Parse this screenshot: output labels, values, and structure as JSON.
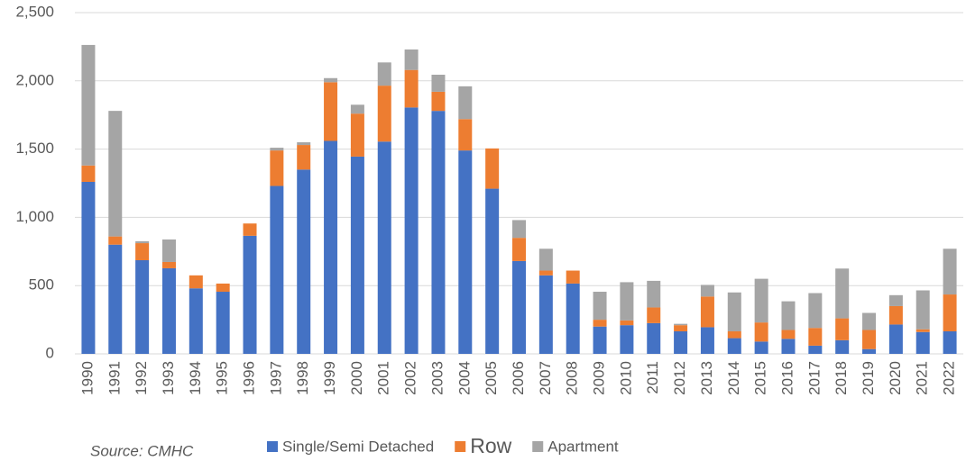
{
  "chart_data": {
    "type": "stacked_bar",
    "categories": [
      "1990",
      "1991",
      "1992",
      "1993",
      "1994",
      "1995",
      "1996",
      "1997",
      "1998",
      "1999",
      "2000",
      "2001",
      "2002",
      "2003",
      "2004",
      "2005",
      "2006",
      "2007",
      "2008",
      "2009",
      "2010",
      "2011",
      "2012",
      "2013",
      "2014",
      "2015",
      "2016",
      "2017",
      "2018",
      "2019",
      "2020",
      "2021",
      "2022"
    ],
    "series": [
      {
        "name": "Single/Semi Detached",
        "color": "#4472c4",
        "values": [
          1260,
          800,
          686,
          627,
          480,
          455,
          865,
          1230,
          1350,
          1560,
          1445,
          1555,
          1805,
          1780,
          1490,
          1210,
          680,
          575,
          515,
          200,
          210,
          225,
          165,
          195,
          115,
          90,
          110,
          60,
          100,
          35,
          215,
          160,
          165
        ]
      },
      {
        "name": "Row",
        "color": "#ed7d31",
        "values": [
          120,
          60,
          125,
          46,
          95,
          60,
          90,
          260,
          180,
          430,
          315,
          410,
          275,
          140,
          230,
          295,
          170,
          35,
          95,
          50,
          35,
          115,
          45,
          225,
          50,
          140,
          65,
          130,
          160,
          140,
          135,
          20,
          270
        ]
      },
      {
        "name": "Apartment",
        "color": "#a5a5a5",
        "values": [
          883,
          920,
          14,
          165,
          0,
          0,
          0,
          20,
          20,
          30,
          65,
          170,
          150,
          125,
          240,
          0,
          130,
          160,
          0,
          205,
          280,
          195,
          10,
          85,
          285,
          320,
          210,
          255,
          365,
          125,
          80,
          285,
          335
        ]
      }
    ],
    "ylim": [
      0,
      2500
    ],
    "yticks": [
      0,
      500,
      {
        "value": 1000,
        "label": "1,000"
      },
      {
        "value": 1500,
        "label": "1,500"
      },
      {
        "value": 2000,
        "label": "2,000"
      },
      {
        "value": 2500,
        "label": "2,500"
      }
    ],
    "grid": true,
    "legend": "bottom",
    "source": "Source: CMHC"
  }
}
